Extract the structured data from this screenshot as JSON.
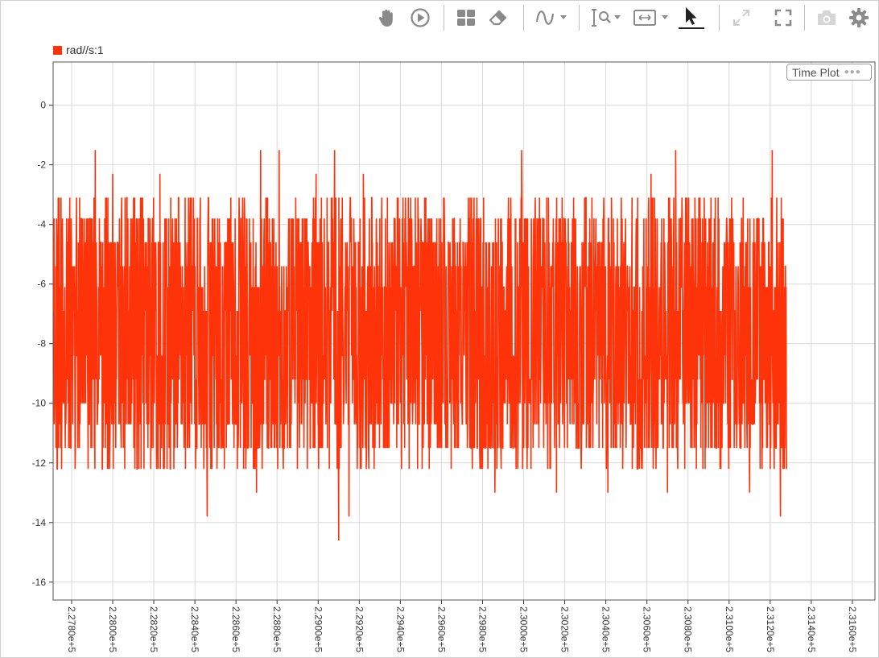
{
  "toolbar": {
    "buttons": [
      {
        "name": "pan-icon"
      },
      {
        "name": "play-icon"
      },
      {
        "name": "layout-icon"
      },
      {
        "name": "eraser-icon"
      },
      {
        "name": "signal-icon"
      },
      {
        "name": "zoom-icon"
      },
      {
        "name": "fit-view-icon"
      },
      {
        "name": "cursor-icon"
      },
      {
        "name": "expand-icon"
      },
      {
        "name": "fullscreen-icon"
      },
      {
        "name": "camera-icon"
      },
      {
        "name": "gear-icon"
      }
    ]
  },
  "plot": {
    "title_button": "Time Plot",
    "colors": {
      "series": "#ff330a",
      "grid": "#d9d9d9",
      "axis": "#333333"
    }
  },
  "chart_data": {
    "type": "line",
    "title": "",
    "xlabel": "",
    "ylabel": "",
    "x_ticks": [
      "2.2780e+5",
      "2.2800e+5",
      "2.2820e+5",
      "2.2840e+5",
      "2.2860e+5",
      "2.2880e+5",
      "2.2900e+5",
      "2.2920e+5",
      "2.2940e+5",
      "2.2960e+5",
      "2.2980e+5",
      "2.3000e+5",
      "2.3020e+5",
      "2.3040e+5",
      "2.3060e+5",
      "2.3080e+5",
      "2.3100e+5",
      "2.3120e+5",
      "2.3140e+5",
      "2.3160e+5"
    ],
    "y_ticks": [
      "0",
      "-2",
      "-4",
      "-6",
      "-8",
      "-10",
      "-12",
      "-14",
      "-16"
    ],
    "xlim": [
      227710,
      231710
    ],
    "ylim": [
      -16.6,
      1.45
    ],
    "grid": true,
    "legend_position": "top-left",
    "series": [
      {
        "name": "rad//s:1",
        "x_range": [
          227710,
          231280
        ],
        "band_low": -11.5,
        "band_high": -3.8,
        "spikes_up": [
          {
            "x": 227915,
            "y": -1.5
          },
          {
            "x": 228720,
            "y": -1.5
          },
          {
            "x": 228810,
            "y": -1.5
          },
          {
            "x": 229080,
            "y": -1.5
          },
          {
            "x": 229990,
            "y": -1.5
          },
          {
            "x": 230740,
            "y": -1.5
          },
          {
            "x": 231210,
            "y": -1.5
          },
          {
            "x": 228000,
            "y": -2.3
          },
          {
            "x": 228230,
            "y": -2.3
          },
          {
            "x": 228990,
            "y": -2.3
          },
          {
            "x": 229220,
            "y": -2.3
          },
          {
            "x": 230620,
            "y": -2.3
          }
        ],
        "spikes_down": [
          {
            "x": 228460,
            "y": -13.8
          },
          {
            "x": 228700,
            "y": -13.0
          },
          {
            "x": 229100,
            "y": -14.6
          },
          {
            "x": 229150,
            "y": -13.8
          },
          {
            "x": 229860,
            "y": -13.0
          },
          {
            "x": 230160,
            "y": -13.0
          },
          {
            "x": 230410,
            "y": -13.0
          },
          {
            "x": 230700,
            "y": -13.0
          },
          {
            "x": 231100,
            "y": -13.0
          },
          {
            "x": 231250,
            "y": -13.8
          }
        ]
      }
    ]
  }
}
